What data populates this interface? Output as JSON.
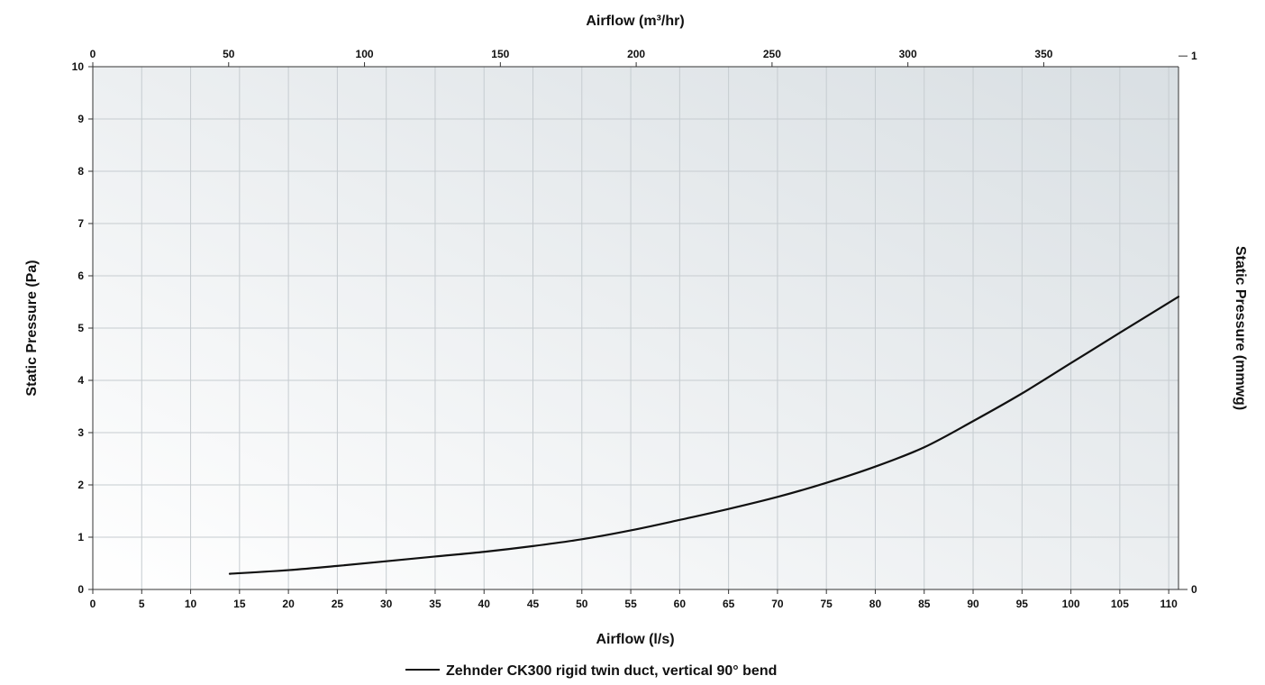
{
  "chart_data": {
    "type": "line",
    "x_top_title": "Airflow (m³/hr)",
    "x_bottom_title": "Airflow (l/s)",
    "y_left_title": "Static Pressure (Pa)",
    "y_right_title": "Static Pressure (mmwg)",
    "x_bottom_range": [
      0,
      111
    ],
    "x_bottom_ticks": [
      0,
      5,
      10,
      15,
      20,
      25,
      30,
      35,
      40,
      45,
      50,
      55,
      60,
      65,
      70,
      75,
      80,
      85,
      90,
      95,
      100,
      105,
      110
    ],
    "x_top_range": [
      0,
      399.6
    ],
    "x_top_ticks": [
      0,
      50,
      100,
      150,
      200,
      250,
      300,
      350
    ],
    "y_left_range": [
      0,
      10
    ],
    "y_left_ticks": [
      0,
      1,
      2,
      3,
      4,
      5,
      6,
      7,
      8,
      9,
      10
    ],
    "y_right_range": [
      0,
      0.98
    ],
    "y_right_ticks": [
      0,
      1
    ],
    "grid": true,
    "series": [
      {
        "name": "Zehnder CK300 rigid twin duct, vertical 90° bend",
        "color": "#111111",
        "x": [
          14,
          20,
          25,
          30,
          35,
          40,
          45,
          50,
          55,
          60,
          65,
          70,
          75,
          80,
          85,
          90,
          95,
          100,
          105,
          111
        ],
        "y": [
          0.3,
          0.37,
          0.45,
          0.54,
          0.63,
          0.72,
          0.83,
          0.96,
          1.13,
          1.33,
          1.54,
          1.77,
          2.04,
          2.35,
          2.72,
          3.22,
          3.75,
          4.33,
          4.91,
          5.6
        ]
      }
    ]
  }
}
